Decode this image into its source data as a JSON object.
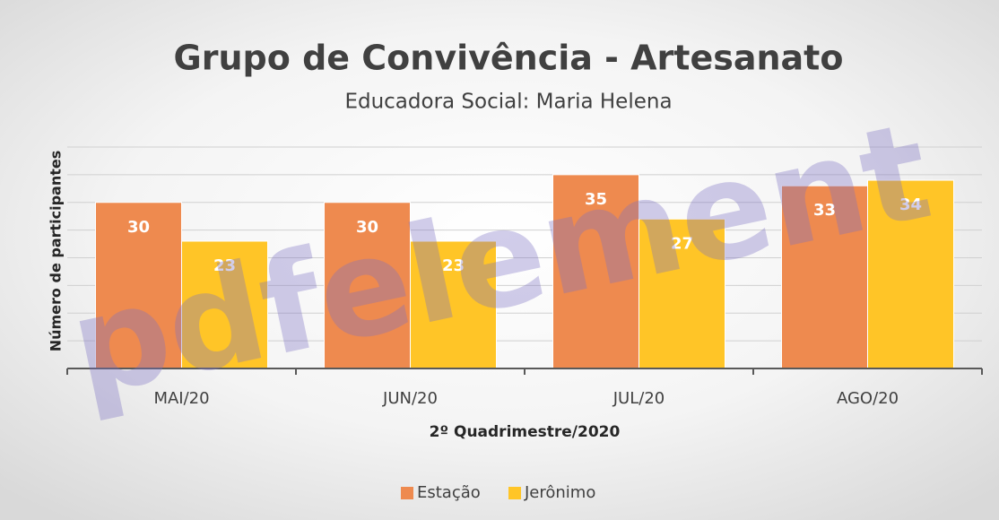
{
  "chart_data": {
    "type": "bar",
    "title": "Grupo de Convivência - Artesanato",
    "subtitle": "Educadora Social: Maria Helena",
    "y_label": "Número de participantes",
    "x_label": "2º Quadrimestre/2020",
    "categories": [
      "MAI/20",
      "JUN/20",
      "JUL/20",
      "AGO/20"
    ],
    "series": [
      {
        "name": "Estação",
        "color": "#ee8a4f",
        "values": [
          30,
          30,
          35,
          33
        ]
      },
      {
        "name": "Jerônimo",
        "color": "#ffc527",
        "values": [
          23,
          23,
          27,
          34
        ]
      }
    ],
    "ylim": [
      0,
      40
    ],
    "yticks": [
      0,
      5,
      10,
      15,
      20,
      25,
      30,
      35,
      40
    ],
    "grid": true,
    "legend": "bottom",
    "watermark": "pdfelement"
  }
}
